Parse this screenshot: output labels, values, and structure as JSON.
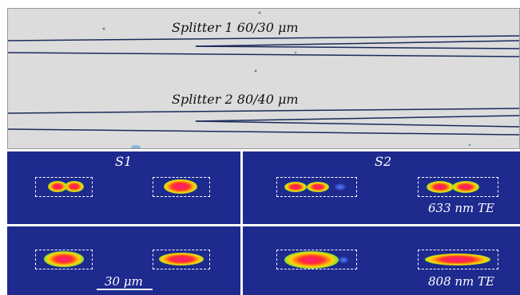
{
  "micrograph": {
    "splitter1_label": "Splitter 1  60/30 μm",
    "splitter2_label": "Splitter 2  80/40 μm"
  },
  "mode_panels": {
    "col_left_title": "S1",
    "col_right_title": "S2",
    "row1_label": "633 nm TE",
    "row2_label": "808 nm TE",
    "scale_label": "30 μm"
  },
  "colors": {
    "background_blue": "#1e2a8e",
    "micrograph_gray": "#dcdcdc",
    "waveguide_line": "#1a2a5a"
  }
}
